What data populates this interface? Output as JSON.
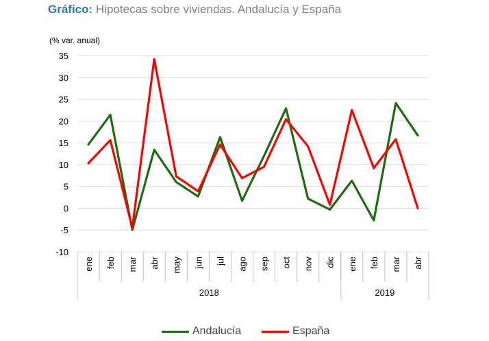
{
  "header": {
    "prefix": "Gráfico:",
    "title": "Hipotecas sobre viviendas. Andalucía y España"
  },
  "colors": {
    "title_prefix": "#2e75b6",
    "Andalucía": "#1e6b12",
    "España": "#ff0000",
    "grid": "#d9d9d9",
    "axis": "#bfbfbf"
  },
  "chart_data": {
    "type": "line",
    "ylabel": "(% var. anual)",
    "ylim": [
      -10,
      35
    ],
    "yticks": [
      -10,
      -5,
      0,
      5,
      10,
      15,
      20,
      25,
      30,
      35
    ],
    "grid": true,
    "legend_position": "bottom",
    "categories": [
      "ene",
      "feb",
      "mar",
      "abr",
      "may",
      "jun",
      "jul",
      "ago",
      "sep",
      "oct",
      "nov",
      "dic",
      "ene",
      "feb",
      "mar",
      "abr"
    ],
    "year_groups": [
      {
        "label": "2018",
        "count": 12
      },
      {
        "label": "2019",
        "count": 4
      }
    ],
    "series": [
      {
        "name": "Andalucía",
        "values": [
          14.6,
          21.4,
          -5.0,
          13.4,
          6.0,
          2.7,
          16.3,
          1.7,
          12.0,
          22.9,
          2.2,
          -0.3,
          6.3,
          -2.8,
          24.1,
          16.7
        ]
      },
      {
        "name": "España",
        "values": [
          10.3,
          15.6,
          -4.5,
          34.2,
          7.3,
          3.9,
          14.6,
          6.9,
          9.5,
          20.4,
          14.2,
          0.8,
          22.5,
          9.2,
          15.8,
          0.0
        ]
      }
    ]
  }
}
